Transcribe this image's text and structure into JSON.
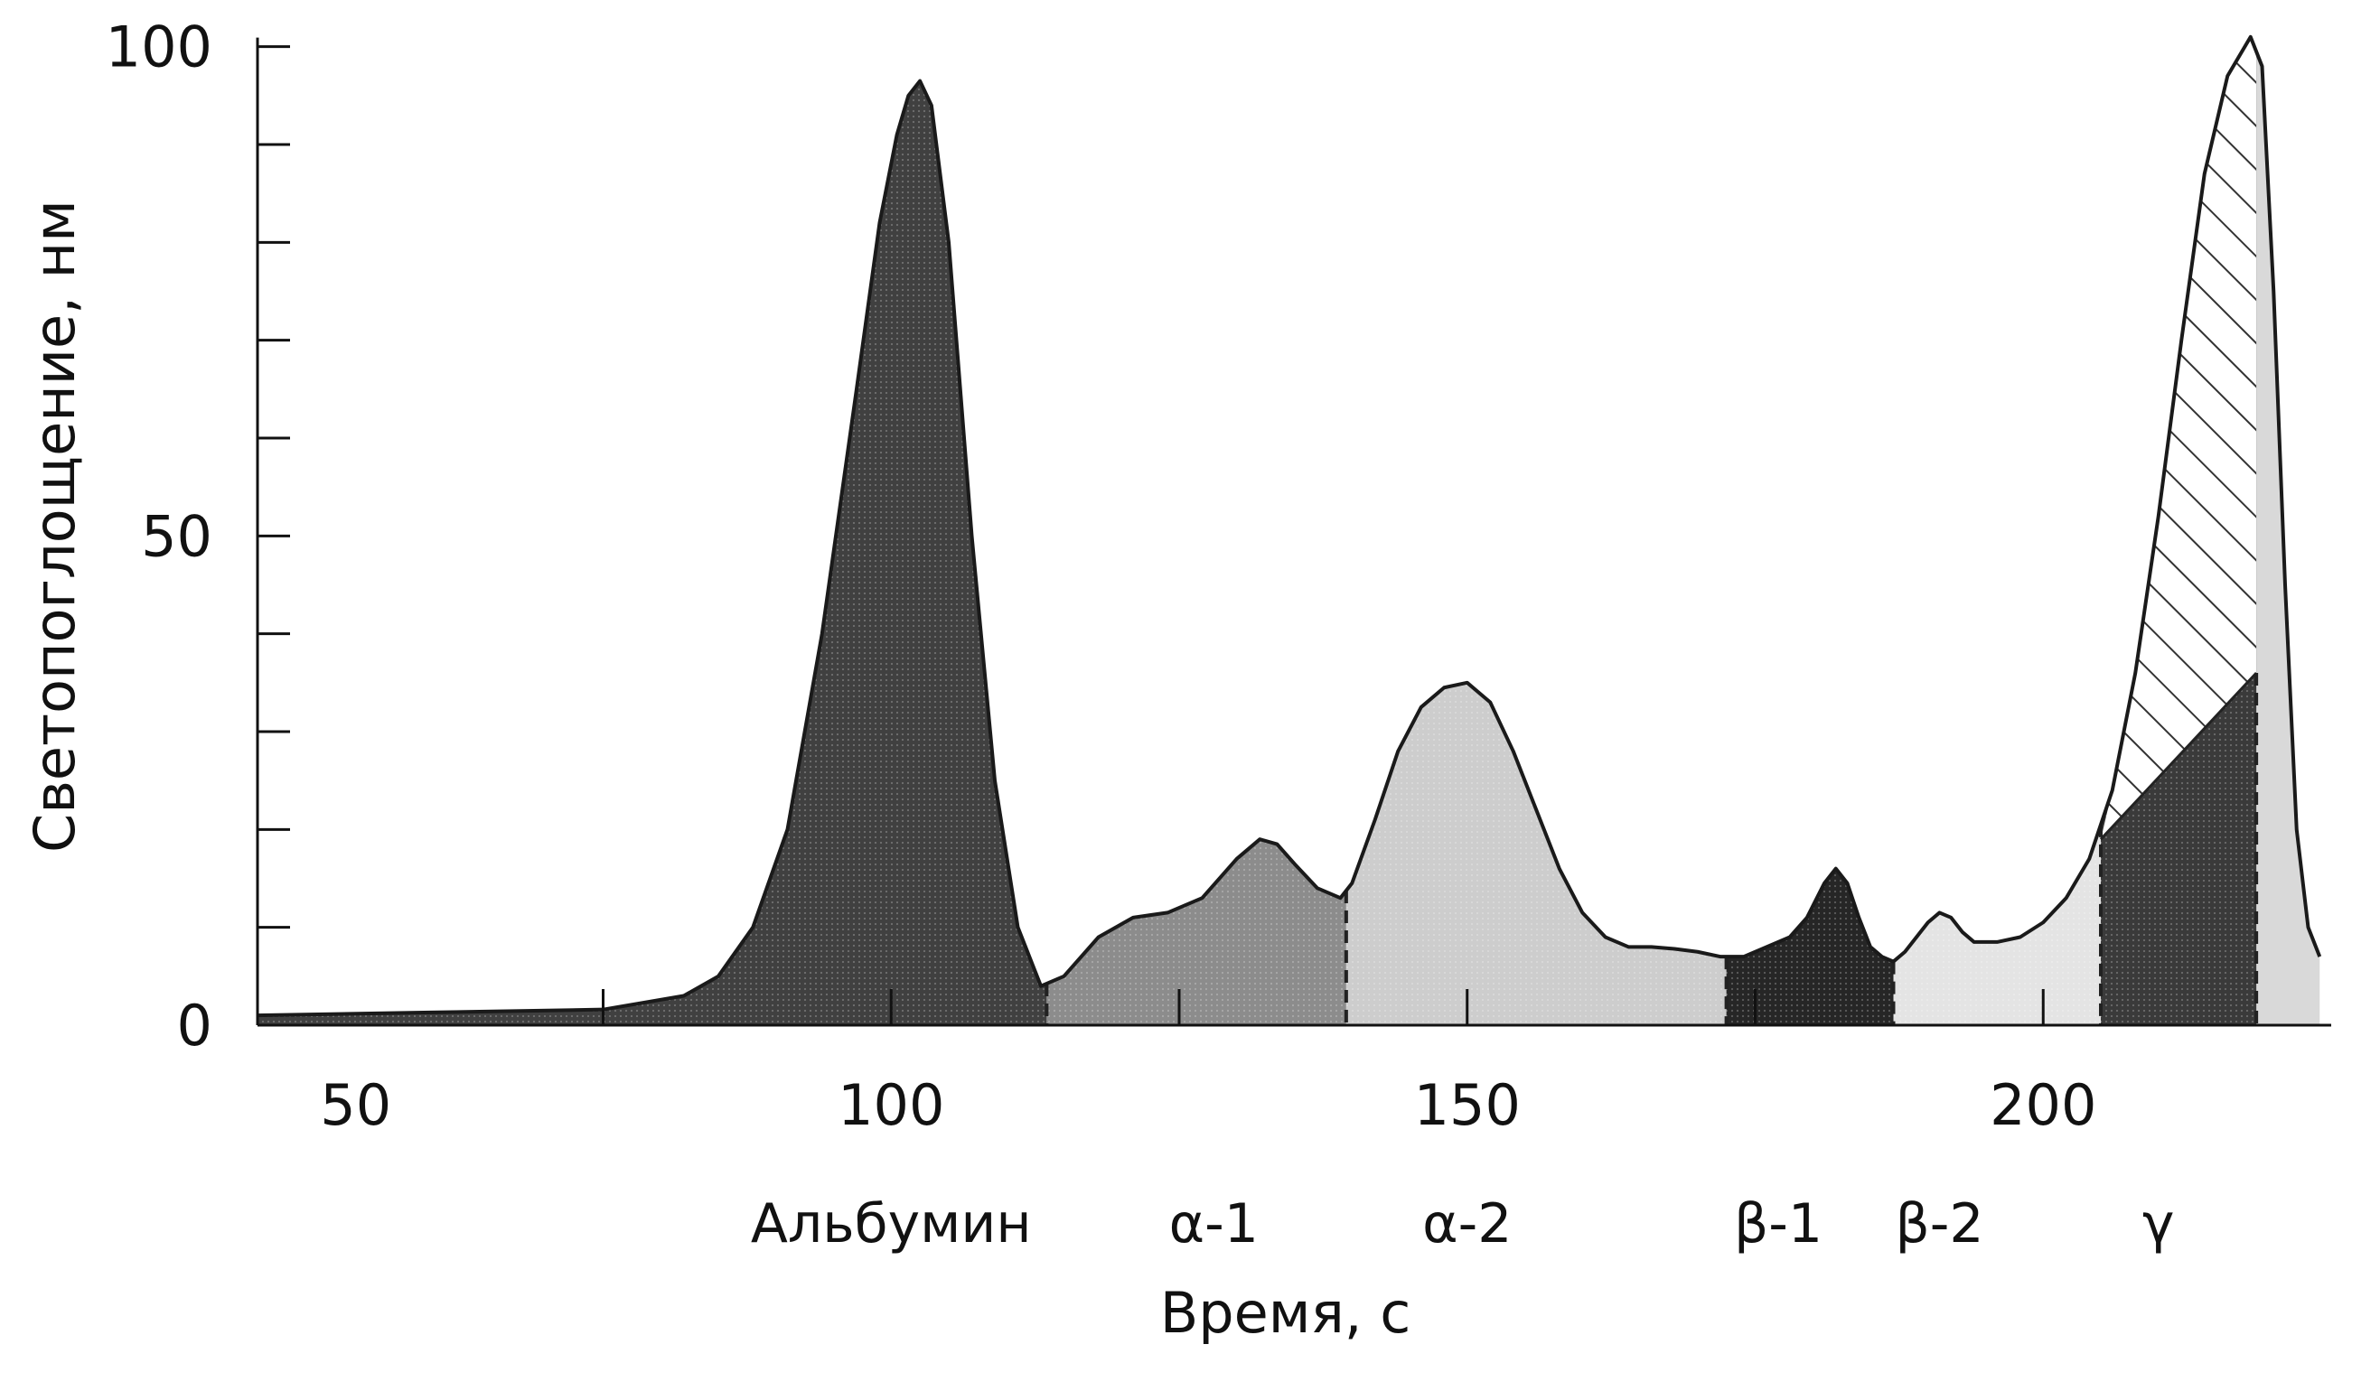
{
  "chart_data": {
    "type": "area",
    "title": "",
    "xlabel": "Время, с",
    "ylabel": "Светопоглощение, нм",
    "xlim": [
      45,
      225
    ],
    "ylim": [
      0,
      102
    ],
    "x_ticks": [
      {
        "value": 50,
        "label": "50"
      },
      {
        "value": 100,
        "label": "100"
      },
      {
        "value": 150,
        "label": "150"
      },
      {
        "value": 200,
        "label": "200"
      }
    ],
    "y_ticks": [
      {
        "value": 0,
        "label": "0"
      },
      {
        "value": 50,
        "label": "50"
      },
      {
        "value": 100,
        "label": "100"
      }
    ],
    "fractions": [
      {
        "label": "Альбумин",
        "x": 100,
        "from": 45,
        "to": 113.5,
        "fill": "#404040"
      },
      {
        "label": "α-1",
        "x": 128,
        "from": 113.5,
        "to": 139.5,
        "fill": "#8c8c8c"
      },
      {
        "label": "α-2",
        "x": 150,
        "from": 139.5,
        "to": 172.5,
        "fill": "#cdcdcd"
      },
      {
        "label": "β-1",
        "x": 177,
        "from": 172.5,
        "to": 187,
        "fill": "#262626"
      },
      {
        "label": "β-2",
        "x": 191,
        "from": 187,
        "to": 205,
        "fill": "#e4e4e4"
      },
      {
        "label": "γ",
        "x": 210,
        "from": 205,
        "to": 222,
        "fill": "#3a3a3a"
      }
    ],
    "series": [
      {
        "x": [
          45,
          60,
          75,
          82,
          85,
          88,
          91,
          94,
          97,
          99,
          100.5,
          101.5,
          102.5,
          103.5,
          105,
          107,
          109,
          111,
          113,
          115,
          118,
          121,
          124,
          127,
          130,
          132,
          133.5,
          135,
          137,
          139,
          140,
          142,
          144,
          146,
          148,
          150,
          152,
          154,
          156,
          158,
          160,
          162,
          164,
          166,
          168,
          170,
          172,
          174,
          176,
          178,
          179.5,
          181,
          182,
          183,
          184,
          185,
          186,
          187,
          188,
          189,
          190,
          191,
          192,
          193,
          194,
          196,
          198,
          200,
          202,
          204,
          206,
          208,
          210,
          212,
          214,
          216,
          218,
          219,
          220,
          221,
          222,
          223,
          224
        ],
        "y": [
          1,
          1.3,
          1.6,
          3,
          5,
          10,
          20,
          40,
          65,
          82,
          91,
          95,
          96.5,
          94,
          80,
          50,
          25,
          10,
          4,
          5,
          9,
          11,
          11.5,
          13,
          17,
          19,
          18.5,
          16.5,
          14,
          13,
          14.5,
          21,
          28,
          32.5,
          34.5,
          35,
          33,
          28,
          22,
          16,
          11.5,
          9,
          8,
          8,
          7.8,
          7.5,
          7,
          7,
          8,
          9,
          11,
          14.5,
          16,
          14.5,
          11,
          8,
          7,
          6.5,
          7.5,
          9,
          10.5,
          11.5,
          11,
          9.5,
          8.5,
          8.5,
          9,
          10.5,
          13,
          17,
          24,
          36,
          52,
          70,
          87,
          97,
          101,
          98,
          75,
          45,
          20,
          10,
          7
        ]
      }
    ],
    "gamma_hatched_upper": {
      "from": 205,
      "to": 218.5,
      "baseline_y_start": 19,
      "baseline_y_end": 36
    },
    "grid": false,
    "legend": "none"
  }
}
